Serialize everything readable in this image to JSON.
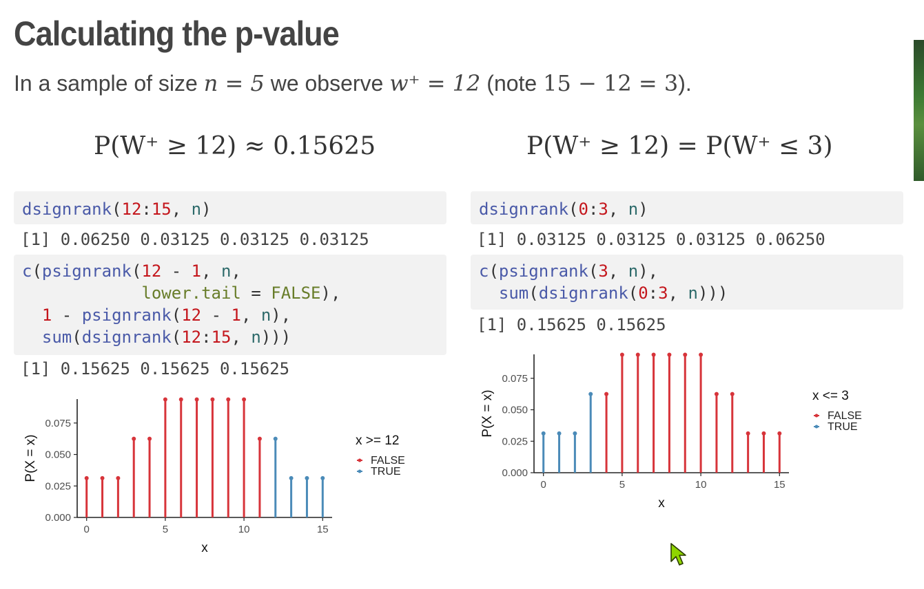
{
  "title": "Calculating the p-value",
  "subtitle": {
    "prefix": "In a sample of size ",
    "n_expr": "n = 5",
    "middle": " we observe ",
    "w_expr": "w⁺ = 12",
    "note_open": " (note ",
    "note_expr": "15 − 12 = 3",
    "note_close": ")."
  },
  "formulas": {
    "left": "P(W⁺ ≥ 12) ≈ 0.15625",
    "right": "P(W⁺ ≥ 12) = P(W⁺ ≤ 3)"
  },
  "left_panel": {
    "code1": "dsignrank(12:15, n)",
    "out1": "[1] 0.06250 0.03125 0.03125 0.03125",
    "code2_lines": [
      "c(psignrank(12 - 1, n,",
      "            lower.tail = FALSE),",
      "  1 - psignrank(12 - 1, n),",
      "  sum(dsignrank(12:15, n)))"
    ],
    "out2": "[1] 0.15625 0.15625 0.15625"
  },
  "right_panel": {
    "code1": "dsignrank(0:3, n)",
    "out1": "[1] 0.03125 0.03125 0.03125 0.06250",
    "code2_lines": [
      "c(psignrank(3, n),",
      "  sum(dsignrank(0:3, n)))"
    ],
    "out2": "[1] 0.15625 0.15625"
  },
  "colors": {
    "false": "#d7343a",
    "true": "#4b8bb8",
    "axis": "#222222"
  },
  "chart_data": [
    {
      "type": "bar",
      "style": "lollipop",
      "x": [
        0,
        1,
        2,
        3,
        4,
        5,
        6,
        7,
        8,
        9,
        10,
        11,
        12,
        13,
        14,
        15
      ],
      "values": [
        0.03125,
        0.03125,
        0.03125,
        0.0625,
        0.0625,
        0.09375,
        0.09375,
        0.09375,
        0.09375,
        0.09375,
        0.09375,
        0.0625,
        0.0625,
        0.03125,
        0.03125,
        0.03125
      ],
      "group": [
        false,
        false,
        false,
        false,
        false,
        false,
        false,
        false,
        false,
        false,
        false,
        false,
        true,
        true,
        true,
        true
      ],
      "xlabel": "x",
      "ylabel": "P(X = x)",
      "xticks": [
        0,
        5,
        10,
        15
      ],
      "yticks": [
        "0.000",
        "0.025",
        "0.050",
        "0.075"
      ],
      "xlim": [
        -0.6,
        15.6
      ],
      "ylim": [
        0,
        0.094
      ],
      "legend_title": "x >= 12",
      "legend_labels": [
        "FALSE",
        "TRUE"
      ],
      "legend_position": "right"
    },
    {
      "type": "bar",
      "style": "lollipop",
      "x": [
        0,
        1,
        2,
        3,
        4,
        5,
        6,
        7,
        8,
        9,
        10,
        11,
        12,
        13,
        14,
        15
      ],
      "values": [
        0.03125,
        0.03125,
        0.03125,
        0.0625,
        0.0625,
        0.09375,
        0.09375,
        0.09375,
        0.09375,
        0.09375,
        0.09375,
        0.0625,
        0.0625,
        0.03125,
        0.03125,
        0.03125
      ],
      "group": [
        true,
        true,
        true,
        true,
        false,
        false,
        false,
        false,
        false,
        false,
        false,
        false,
        false,
        false,
        false,
        false
      ],
      "xlabel": "x",
      "ylabel": "P(X = x)",
      "xticks": [
        0,
        5,
        10,
        15
      ],
      "yticks": [
        "0.000",
        "0.025",
        "0.050",
        "0.075"
      ],
      "xlim": [
        -0.6,
        15.6
      ],
      "ylim": [
        0,
        0.094
      ],
      "legend_title": "x <= 3",
      "legend_labels": [
        "FALSE",
        "TRUE"
      ],
      "legend_position": "right"
    }
  ]
}
